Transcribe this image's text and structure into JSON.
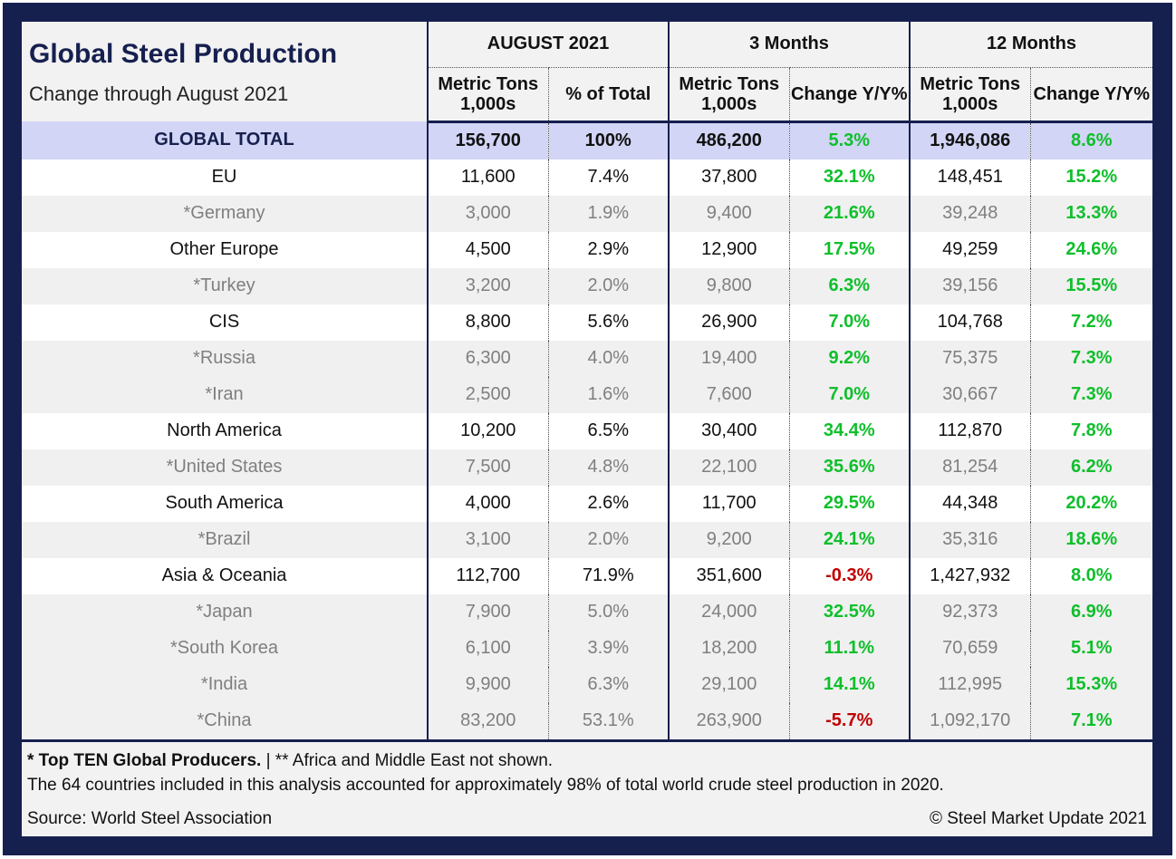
{
  "header": {
    "title": "Global Steel Production",
    "subtitle": "Change through August 2021",
    "groups": [
      "AUGUST 2021",
      "3 Months",
      "12 Months"
    ],
    "columns": {
      "metric_tons_line1": "Metric Tons",
      "metric_tons_line2": "1,000s",
      "pct_total": "% of Total",
      "change": "Change Y/Y%"
    }
  },
  "rows": [
    {
      "name": "GLOBAL TOTAL",
      "kind": "total",
      "aug": "156,700",
      "pct": "100%",
      "m3": "486,200",
      "m3chg": "5.3%",
      "m12": "1,946,086",
      "m12chg": "8.6%"
    },
    {
      "name": "EU",
      "kind": "region",
      "aug": "11,600",
      "pct": "7.4%",
      "m3": "37,800",
      "m3chg": "32.1%",
      "m12": "148,451",
      "m12chg": "15.2%"
    },
    {
      "name": "*Germany",
      "kind": "country",
      "aug": "3,000",
      "pct": "1.9%",
      "m3": "9,400",
      "m3chg": "21.6%",
      "m12": "39,248",
      "m12chg": "13.3%"
    },
    {
      "name": "Other Europe",
      "kind": "region",
      "aug": "4,500",
      "pct": "2.9%",
      "m3": "12,900",
      "m3chg": "17.5%",
      "m12": "49,259",
      "m12chg": "24.6%"
    },
    {
      "name": "*Turkey",
      "kind": "country",
      "aug": "3,200",
      "pct": "2.0%",
      "m3": "9,800",
      "m3chg": "6.3%",
      "m12": "39,156",
      "m12chg": "15.5%"
    },
    {
      "name": "CIS",
      "kind": "region",
      "aug": "8,800",
      "pct": "5.6%",
      "m3": "26,900",
      "m3chg": "7.0%",
      "m12": "104,768",
      "m12chg": "7.2%"
    },
    {
      "name": "*Russia",
      "kind": "country",
      "aug": "6,300",
      "pct": "4.0%",
      "m3": "19,400",
      "m3chg": "9.2%",
      "m12": "75,375",
      "m12chg": "7.3%"
    },
    {
      "name": "*Iran",
      "kind": "country",
      "aug": "2,500",
      "pct": "1.6%",
      "m3": "7,600",
      "m3chg": "7.0%",
      "m12": "30,667",
      "m12chg": "7.3%"
    },
    {
      "name": "North America",
      "kind": "region",
      "aug": "10,200",
      "pct": "6.5%",
      "m3": "30,400",
      "m3chg": "34.4%",
      "m12": "112,870",
      "m12chg": "7.8%"
    },
    {
      "name": "*United States",
      "kind": "country",
      "aug": "7,500",
      "pct": "4.8%",
      "m3": "22,100",
      "m3chg": "35.6%",
      "m12": "81,254",
      "m12chg": "6.2%"
    },
    {
      "name": "South America",
      "kind": "region",
      "aug": "4,000",
      "pct": "2.6%",
      "m3": "11,700",
      "m3chg": "29.5%",
      "m12": "44,348",
      "m12chg": "20.2%"
    },
    {
      "name": "*Brazil",
      "kind": "country",
      "aug": "3,100",
      "pct": "2.0%",
      "m3": "9,200",
      "m3chg": "24.1%",
      "m12": "35,316",
      "m12chg": "18.6%"
    },
    {
      "name": "Asia & Oceania",
      "kind": "region",
      "aug": "112,700",
      "pct": "71.9%",
      "m3": "351,600",
      "m3chg": "-0.3%",
      "m12": "1,427,932",
      "m12chg": "8.0%"
    },
    {
      "name": "*Japan",
      "kind": "country",
      "aug": "7,900",
      "pct": "5.0%",
      "m3": "24,000",
      "m3chg": "32.5%",
      "m12": "92,373",
      "m12chg": "6.9%"
    },
    {
      "name": "*South Korea",
      "kind": "country",
      "aug": "6,100",
      "pct": "3.9%",
      "m3": "18,200",
      "m3chg": "11.1%",
      "m12": "70,659",
      "m12chg": "5.1%"
    },
    {
      "name": "*India",
      "kind": "country",
      "aug": "9,900",
      "pct": "6.3%",
      "m3": "29,100",
      "m3chg": "14.1%",
      "m12": "112,995",
      "m12chg": "15.3%"
    },
    {
      "name": "*China",
      "kind": "country",
      "aug": "83,200",
      "pct": "53.1%",
      "m3": "263,900",
      "m3chg": "-5.7%",
      "m12": "1,092,170",
      "m12chg": "7.1%"
    }
  ],
  "footer": {
    "note_bold": "* Top TEN Global Producers.",
    "note_rest": " | ** Africa and Middle East not shown.",
    "note2": "The 64 countries included in this analysis accounted for approximately 98% of total world crude steel production in 2020.",
    "source": "Source: World Steel Association",
    "copyright": "© Steel Market Update 2021"
  },
  "colors": {
    "navy": "#16204f",
    "total_row": "#d2d5f5",
    "positive": "#0fbf2b",
    "negative": "#c00000",
    "country_text": "#7f7f7f"
  }
}
